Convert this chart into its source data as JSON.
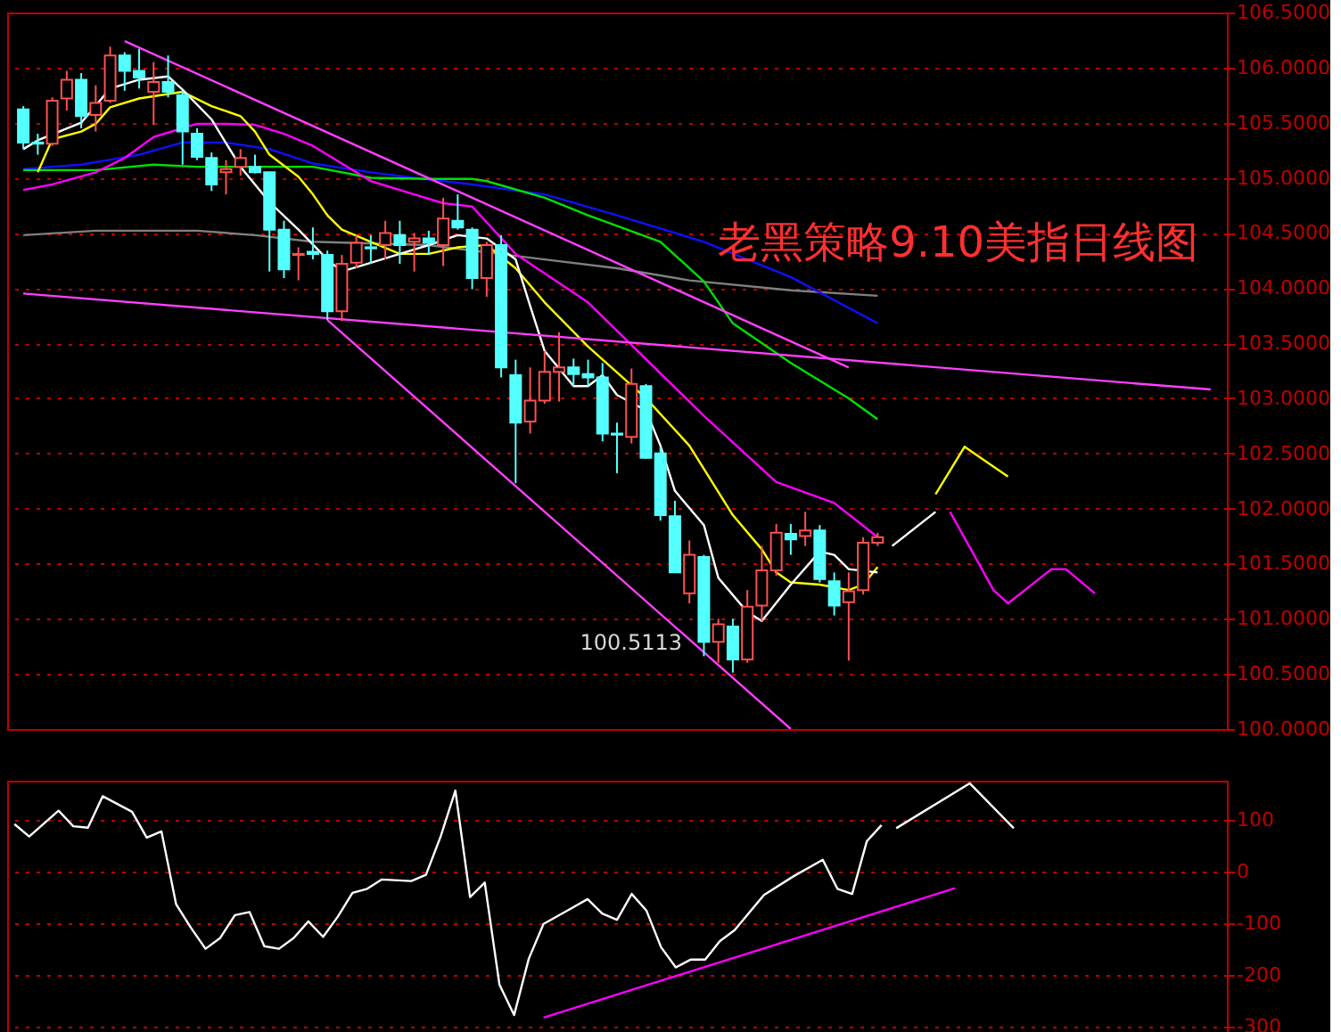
{
  "chart_data": [
    {
      "type": "candlestick",
      "title": "老黑策略9.10美指日线图",
      "categories": [
        null,
        null,
        null,
        null,
        null,
        null,
        null,
        null,
        null,
        null,
        null,
        null,
        null,
        null,
        null,
        null,
        null,
        null,
        null,
        null,
        null,
        null,
        null,
        null,
        null,
        null,
        null,
        null,
        null,
        null,
        null,
        null,
        null,
        null,
        null,
        null,
        null,
        null,
        null,
        null,
        null,
        null,
        null,
        null,
        null,
        null,
        null,
        null,
        null,
        null,
        null,
        null,
        null,
        null,
        null,
        null,
        null,
        null,
        null,
        null,
        null,
        null,
        null,
        null,
        null,
        null,
        null,
        null,
        null,
        null,
        null,
        null,
        null,
        null,
        null,
        null,
        null,
        null,
        null,
        null,
        null,
        null,
        null
      ],
      "ohlc": [
        [
          105.62,
          105.65,
          105.26,
          105.32
        ],
        [
          105.32,
          105.4,
          105.21,
          105.31
        ],
        [
          105.31,
          105.73,
          105.29,
          105.7
        ],
        [
          105.72,
          105.97,
          105.61,
          105.89
        ],
        [
          105.89,
          105.95,
          105.45,
          105.56
        ],
        [
          105.57,
          105.84,
          105.42,
          105.68
        ],
        [
          105.7,
          106.19,
          105.68,
          106.11
        ],
        [
          106.11,
          106.14,
          105.79,
          105.97
        ],
        [
          105.97,
          106.17,
          105.81,
          105.91
        ],
        [
          105.78,
          106.05,
          105.48,
          105.87
        ],
        [
          105.87,
          106.11,
          105.73,
          105.78
        ],
        [
          105.75,
          105.79,
          105.12,
          105.42
        ],
        [
          105.4,
          105.45,
          105.16,
          105.19
        ],
        [
          105.18,
          105.23,
          104.88,
          104.94
        ],
        [
          105.05,
          105.16,
          104.85,
          105.08
        ],
        [
          105.1,
          105.26,
          105.02,
          105.18
        ],
        [
          105.1,
          105.21,
          105.04,
          105.05
        ],
        [
          105.05,
          105.05,
          104.15,
          104.53
        ],
        [
          104.53,
          104.61,
          104.09,
          104.17
        ],
        [
          104.3,
          104.37,
          104.07,
          104.31
        ],
        [
          104.33,
          104.55,
          104.26,
          104.31
        ],
        [
          104.3,
          104.34,
          103.71,
          103.79
        ],
        [
          103.79,
          104.3,
          103.7,
          104.22
        ],
        [
          104.23,
          104.48,
          104.18,
          104.41
        ],
        [
          104.37,
          104.48,
          104.22,
          104.36
        ],
        [
          104.39,
          104.61,
          104.26,
          104.5
        ],
        [
          104.48,
          104.61,
          104.22,
          104.39
        ],
        [
          104.42,
          104.5,
          104.15,
          104.45
        ],
        [
          104.45,
          104.52,
          104.3,
          104.41
        ],
        [
          104.39,
          104.82,
          104.2,
          104.63
        ],
        [
          104.61,
          104.85,
          104.53,
          104.55
        ],
        [
          104.53,
          104.55,
          103.99,
          104.09
        ],
        [
          104.09,
          104.42,
          103.92,
          104.39
        ],
        [
          104.39,
          104.48,
          103.19,
          103.28
        ],
        [
          103.21,
          103.35,
          102.23,
          102.78
        ],
        [
          102.79,
          103.28,
          102.68,
          102.98
        ],
        [
          102.98,
          103.43,
          102.95,
          103.24
        ],
        [
          103.24,
          103.6,
          102.97,
          103.28
        ],
        [
          103.28,
          103.36,
          103.11,
          103.22
        ],
        [
          103.22,
          103.35,
          103.11,
          103.19
        ],
        [
          103.19,
          103.32,
          102.61,
          102.68
        ],
        [
          102.68,
          102.78,
          102.32,
          102.67
        ],
        [
          102.65,
          103.27,
          102.59,
          103.13
        ],
        [
          103.11,
          103.13,
          102.45,
          102.46
        ],
        [
          102.5,
          102.56,
          101.89,
          101.94
        ],
        [
          101.93,
          102.07,
          101.42,
          101.42
        ],
        [
          101.23,
          101.71,
          101.14,
          101.58
        ],
        [
          101.56,
          101.58,
          100.66,
          100.79
        ],
        [
          100.79,
          101.0,
          100.6,
          100.95
        ],
        [
          100.93,
          101.0,
          100.5113,
          100.63
        ],
        [
          100.63,
          101.26,
          100.6,
          101.11
        ],
        [
          101.12,
          101.66,
          100.98,
          101.44
        ],
        [
          101.44,
          101.86,
          101.39,
          101.78
        ],
        [
          101.77,
          101.86,
          101.58,
          101.72
        ],
        [
          101.75,
          101.97,
          101.66,
          101.8
        ],
        [
          101.8,
          101.85,
          101.33,
          101.36
        ],
        [
          101.34,
          101.42,
          101.03,
          101.12
        ],
        [
          101.15,
          101.42,
          100.62,
          101.25
        ],
        [
          101.26,
          101.74,
          101.22,
          101.69
        ],
        [
          101.69,
          101.78,
          101.66,
          101.74
        ],
        null,
        null,
        null,
        null,
        null,
        null,
        null,
        null,
        null,
        null,
        null,
        null,
        null,
        null,
        null,
        null,
        null,
        null,
        null,
        null,
        null,
        null,
        null
      ],
      "series": [
        {
          "type": "line",
          "color": "#808080",
          "values": [
            104.48,
            null,
            null,
            null,
            null,
            104.52,
            null,
            null,
            null,
            null,
            null,
            null,
            104.52,
            null,
            null,
            null,
            104.48,
            null,
            null,
            null,
            104.42,
            null,
            null,
            null,
            null,
            null,
            null,
            null,
            104.39,
            null,
            null,
            104.34,
            null,
            null,
            null,
            null,
            104.26,
            null,
            null,
            null,
            null,
            104.18,
            null,
            null,
            null,
            null,
            104.07,
            null,
            null,
            null,
            null,
            null,
            null,
            103.98,
            null,
            null,
            null,
            null,
            null,
            103.93,
            null,
            null,
            null,
            null,
            null,
            null,
            null,
            null,
            null,
            null,
            null,
            null,
            null,
            null,
            null,
            null,
            null,
            null,
            null,
            null,
            null,
            null,
            null
          ]
        },
        {
          "type": "line",
          "color": "#1010ff",
          "values": [
            105.08,
            null,
            null,
            null,
            105.12,
            null,
            null,
            null,
            105.21,
            null,
            null,
            105.32,
            null,
            null,
            105.32,
            null,
            null,
            105.26,
            null,
            null,
            105.13,
            null,
            null,
            null,
            105.05,
            null,
            null,
            105.0,
            null,
            null,
            null,
            104.94,
            null,
            null,
            null,
            null,
            104.85,
            null,
            null,
            null,
            null,
            104.66,
            null,
            null,
            null,
            null,
            null,
            104.42,
            null,
            null,
            null,
            null,
            null,
            104.1,
            null,
            null,
            null,
            null,
            null,
            103.68,
            null,
            null,
            null,
            null,
            null,
            null,
            null,
            null,
            null,
            null,
            null,
            null,
            null,
            null,
            null,
            null,
            null,
            null,
            null,
            null,
            null,
            null,
            null
          ]
        },
        {
          "type": "line",
          "color": "#00e000",
          "values": [
            105.07,
            null,
            null,
            null,
            null,
            105.07,
            null,
            null,
            null,
            105.12,
            null,
            null,
            105.1,
            null,
            null,
            null,
            105.1,
            null,
            null,
            null,
            105.1,
            null,
            null,
            null,
            105.0,
            null,
            null,
            null,
            104.99,
            null,
            null,
            104.99,
            104.97,
            null,
            null,
            null,
            104.82,
            null,
            null,
            104.66,
            null,
            null,
            null,
            null,
            104.42,
            null,
            null,
            104.06,
            null,
            103.68,
            null,
            null,
            null,
            103.32,
            null,
            null,
            null,
            103.0,
            null,
            102.81,
            null,
            null,
            null,
            null,
            null,
            null,
            null,
            null,
            null,
            null,
            null,
            null,
            null,
            null,
            null,
            null,
            null,
            null,
            null,
            null,
            null,
            null,
            null
          ]
        },
        {
          "type": "line",
          "color": "#ff00ff",
          "values": [
            104.89,
            null,
            104.94,
            null,
            null,
            105.05,
            null,
            105.18,
            null,
            105.37,
            null,
            null,
            105.49,
            null,
            105.49,
            null,
            105.48,
            null,
            105.4,
            null,
            105.29,
            null,
            105.13,
            null,
            104.97,
            null,
            null,
            104.85,
            null,
            104.77,
            null,
            104.74,
            null,
            null,
            104.31,
            null,
            null,
            null,
            null,
            103.87,
            null,
            null,
            null,
            null,
            null,
            null,
            null,
            102.84,
            null,
            null,
            null,
            null,
            102.24,
            null,
            null,
            null,
            102.05,
            null,
            null,
            101.74,
            null,
            null,
            null,
            null,
            null,
            null,
            null,
            null,
            null,
            null,
            null,
            null,
            null,
            null,
            null,
            null,
            null,
            null,
            null,
            null,
            null,
            null,
            null
          ]
        },
        {
          "type": "line",
          "color": "#ffff00",
          "values": [
            null,
            105.05,
            105.35,
            null,
            105.42,
            105.49,
            105.64,
            null,
            105.72,
            null,
            105.76,
            105.78,
            null,
            105.65,
            null,
            105.56,
            105.42,
            105.21,
            null,
            105.01,
            104.85,
            104.66,
            104.53,
            null,
            104.42,
            null,
            104.31,
            null,
            104.31,
            null,
            104.37,
            null,
            104.39,
            null,
            104.18,
            null,
            103.87,
            null,
            null,
            103.47,
            null,
            null,
            null,
            103.0,
            null,
            null,
            102.57,
            null,
            null,
            101.94,
            null,
            101.63,
            101.42,
            101.33,
            null,
            101.31,
            null,
            101.26,
            101.31,
            101.47,
            null,
            null,
            null,
            null,
            null,
            null,
            null,
            null,
            null,
            null,
            null,
            null,
            null,
            null,
            null,
            null,
            null,
            null,
            null,
            null,
            null,
            null,
            null
          ]
        },
        {
          "type": "line",
          "color": "#ffffff",
          "values": [
            105.26,
            105.34,
            null,
            null,
            105.5,
            null,
            105.81,
            null,
            105.89,
            null,
            105.92,
            105.8,
            null,
            105.53,
            null,
            105.1,
            null,
            104.78,
            null,
            104.53,
            null,
            104.26,
            104.15,
            null,
            104.23,
            null,
            104.31,
            null,
            104.39,
            null,
            104.48,
            null,
            104.45,
            null,
            104.26,
            103.84,
            103.43,
            null,
            103.11,
            103.11,
            103.21,
            103.03,
            null,
            102.89,
            102.57,
            102.16,
            null,
            101.85,
            101.37,
            null,
            101.06,
            100.98,
            null,
            101.31,
            null,
            101.61,
            101.58,
            101.45,
            null,
            101.42,
            null,
            null,
            null,
            null,
            null,
            null,
            null,
            null,
            null,
            null,
            null,
            null,
            null,
            null,
            null,
            null,
            null,
            null,
            null,
            null,
            null,
            null,
            null
          ]
        },
        {
          "type": "line",
          "color": "#ff40ff",
          "values": [
            null,
            null,
            null,
            null,
            null,
            null,
            null,
            106.24,
            null,
            null,
            null,
            null,
            null,
            null,
            null,
            null,
            null,
            null,
            null,
            null,
            null,
            null,
            null,
            null,
            null,
            null,
            null,
            null,
            null,
            null,
            null,
            null,
            null,
            null,
            null,
            null,
            null,
            null,
            null,
            null,
            null,
            null,
            null,
            null,
            null,
            null,
            null,
            null,
            null,
            null,
            null,
            null,
            null,
            null,
            null,
            null,
            null,
            103.28,
            null,
            null,
            null,
            null,
            null,
            null,
            null,
            null,
            null,
            null,
            null,
            null,
            null,
            null,
            null,
            null,
            null,
            null,
            null,
            null,
            null,
            null,
            null,
            null,
            null
          ]
        },
        {
          "type": "line",
          "color": "#ff40ff",
          "values": [
            null,
            null,
            null,
            null,
            null,
            null,
            null,
            null,
            null,
            null,
            null,
            null,
            null,
            null,
            null,
            null,
            null,
            null,
            null,
            null,
            null,
            103.71,
            null,
            null,
            null,
            null,
            null,
            null,
            null,
            null,
            null,
            null,
            null,
            null,
            null,
            null,
            null,
            null,
            null,
            null,
            null,
            null,
            null,
            null,
            null,
            null,
            null,
            null,
            null,
            null,
            null,
            null,
            null,
            100.0,
            null,
            null,
            null,
            null,
            null,
            null,
            null,
            null,
            null,
            null,
            null,
            null,
            null,
            null,
            null,
            null,
            null,
            null,
            null,
            null,
            null,
            null,
            null,
            null,
            null,
            null,
            null,
            null,
            null
          ]
        },
        {
          "type": "line",
          "color": "#ff40ff",
          "values": [
            103.95,
            null,
            null,
            null,
            null,
            null,
            null,
            null,
            null,
            null,
            null,
            null,
            null,
            null,
            null,
            null,
            null,
            null,
            null,
            null,
            null,
            null,
            null,
            null,
            null,
            null,
            null,
            null,
            null,
            null,
            null,
            null,
            null,
            null,
            null,
            null,
            null,
            null,
            null,
            null,
            null,
            null,
            null,
            null,
            null,
            null,
            null,
            null,
            null,
            null,
            null,
            null,
            null,
            null,
            null,
            null,
            null,
            null,
            null,
            null,
            null,
            null,
            null,
            null,
            null,
            null,
            null,
            null,
            null,
            null,
            null,
            null,
            null,
            null,
            null,
            null,
            null,
            null,
            null,
            null,
            null,
            null,
            103.08
          ]
        },
        {
          "type": "line",
          "color": "#ffffff",
          "values": [
            null,
            null,
            null,
            null,
            null,
            null,
            null,
            null,
            null,
            null,
            null,
            null,
            null,
            null,
            null,
            null,
            null,
            null,
            null,
            null,
            null,
            null,
            null,
            null,
            null,
            null,
            null,
            null,
            null,
            null,
            null,
            null,
            null,
            null,
            null,
            null,
            null,
            null,
            null,
            null,
            null,
            null,
            null,
            null,
            null,
            null,
            null,
            null,
            null,
            null,
            null,
            null,
            null,
            null,
            null,
            null,
            null,
            null,
            null,
            null,
            101.66,
            null,
            null,
            101.97,
            null,
            null,
            null,
            null,
            null,
            null,
            null,
            null,
            null,
            null,
            null,
            null,
            null,
            null,
            null,
            null,
            null,
            null,
            null
          ]
        },
        {
          "type": "line",
          "color": "#ffff00",
          "values": [
            null,
            null,
            null,
            null,
            null,
            null,
            null,
            null,
            null,
            null,
            null,
            null,
            null,
            null,
            null,
            null,
            null,
            null,
            null,
            null,
            null,
            null,
            null,
            null,
            null,
            null,
            null,
            null,
            null,
            null,
            null,
            null,
            null,
            null,
            null,
            null,
            null,
            null,
            null,
            null,
            null,
            null,
            null,
            null,
            null,
            null,
            null,
            null,
            null,
            null,
            null,
            null,
            null,
            null,
            null,
            null,
            null,
            null,
            null,
            null,
            null,
            null,
            null,
            102.13,
            null,
            102.56,
            null,
            null,
            102.29,
            null,
            null,
            null,
            null,
            null,
            null,
            null,
            null,
            null,
            null,
            null,
            null,
            null,
            null
          ]
        },
        {
          "type": "line",
          "color": "#ff00ff",
          "values": [
            null,
            null,
            null,
            null,
            null,
            null,
            null,
            null,
            null,
            null,
            null,
            null,
            null,
            null,
            null,
            null,
            null,
            null,
            null,
            null,
            null,
            null,
            null,
            null,
            null,
            null,
            null,
            null,
            null,
            null,
            null,
            null,
            null,
            null,
            null,
            null,
            null,
            null,
            null,
            null,
            null,
            null,
            null,
            null,
            null,
            null,
            null,
            null,
            null,
            null,
            null,
            null,
            null,
            null,
            null,
            null,
            null,
            null,
            null,
            null,
            null,
            null,
            null,
            null,
            101.97,
            null,
            null,
            101.26,
            101.14,
            null,
            null,
            101.45,
            101.45,
            null,
            101.23,
            null,
            null,
            null,
            null,
            null,
            null,
            null,
            null
          ]
        }
      ],
      "ylim": [
        100,
        106.5
      ],
      "yticks": [
        {
          "value": 100,
          "label": "100.0000"
        },
        {
          "value": 100.5,
          "label": "100.5000"
        },
        {
          "value": 101,
          "label": "101.0000"
        },
        {
          "value": 101.5,
          "label": "101.5000"
        },
        {
          "value": 102,
          "label": "102.0000"
        },
        {
          "value": 102.5,
          "label": "102.5000"
        },
        {
          "value": 103,
          "label": "103.0000"
        },
        {
          "value": 103.5,
          "label": "103.5000"
        },
        {
          "value": 104,
          "label": "104.0000"
        },
        {
          "value": 104.5,
          "label": "104.5000"
        },
        {
          "value": 105,
          "label": "105.0000"
        },
        {
          "value": 105.5,
          "label": "105.5000"
        },
        {
          "value": 106,
          "label": "106.0000"
        },
        {
          "value": 106.5,
          "label": "106.5000"
        }
      ],
      "grid": "y",
      "tick_labels": "y",
      "annotations": [
        "100.5113"
      ]
    },
    {
      "type": "line",
      "categories": [
        null,
        null,
        null,
        null,
        null,
        null,
        null,
        null,
        null,
        null,
        null,
        null,
        null,
        null,
        null,
        null,
        null,
        null,
        null,
        null,
        null,
        null,
        null,
        null,
        null,
        null,
        null,
        null,
        null,
        null,
        null,
        null,
        null,
        null,
        null,
        null,
        null,
        null,
        null,
        null,
        null,
        null,
        null,
        null,
        null,
        null,
        null,
        null,
        null,
        null,
        null,
        null,
        null,
        null,
        null,
        null,
        null,
        null,
        null,
        null,
        null,
        null,
        null,
        null,
        null,
        null,
        null,
        null,
        null,
        null,
        null,
        null,
        null,
        null,
        null,
        null,
        null,
        null,
        null,
        null,
        null,
        null,
        null
      ],
      "series": [
        {
          "color": "#ffffff",
          "values": [
            91,
            67,
            null,
            117,
            87,
            84,
            145,
            null,
            115,
            65,
            77,
            -64,
            -109,
            -150,
            -129,
            -85,
            -79,
            -145,
            -150,
            -129,
            -97,
            -127,
            -88,
            -42,
            -34,
            -16,
            null,
            -19,
            -7,
            67,
            156,
            -50,
            -22,
            -219,
            -278,
            -169,
            -102,
            null,
            -70,
            -54,
            -82,
            -94,
            -44,
            -76,
            -147,
            -186,
            -171,
            -171,
            -135,
            -114,
            null,
            -46,
            null,
            -10,
            null,
            22,
            -34,
            -44,
            58,
            89,
            null,
            null,
            null,
            null,
            null,
            null,
            null,
            null,
            null,
            null,
            null,
            null,
            null,
            null,
            null,
            null,
            null,
            null,
            null,
            null,
            null,
            null,
            null
          ]
        },
        {
          "color": "#ffffff",
          "values": [
            null,
            null,
            null,
            null,
            null,
            null,
            null,
            null,
            null,
            null,
            null,
            null,
            null,
            null,
            null,
            null,
            null,
            null,
            null,
            null,
            null,
            null,
            null,
            null,
            null,
            null,
            null,
            null,
            null,
            null,
            null,
            null,
            null,
            null,
            null,
            null,
            null,
            null,
            null,
            null,
            null,
            null,
            null,
            null,
            null,
            null,
            null,
            null,
            null,
            null,
            null,
            null,
            null,
            null,
            null,
            null,
            null,
            null,
            null,
            null,
            83,
            null,
            null,
            null,
            null,
            170,
            null,
            null,
            83,
            null,
            null,
            null,
            null,
            null,
            null,
            null,
            null,
            null,
            null,
            null,
            null,
            null,
            null
          ]
        },
        {
          "color": "#ff00ff",
          "values": [
            null,
            null,
            null,
            null,
            null,
            null,
            null,
            null,
            null,
            null,
            null,
            null,
            null,
            null,
            null,
            null,
            null,
            null,
            null,
            null,
            null,
            null,
            null,
            null,
            null,
            null,
            null,
            null,
            null,
            null,
            null,
            null,
            null,
            null,
            null,
            null,
            -283,
            null,
            null,
            null,
            null,
            null,
            null,
            null,
            null,
            null,
            null,
            null,
            null,
            null,
            null,
            null,
            null,
            null,
            null,
            null,
            null,
            null,
            null,
            null,
            null,
            null,
            null,
            null,
            -33,
            null,
            null,
            null,
            null,
            null,
            null,
            null,
            null,
            null,
            null,
            null,
            null,
            null,
            null,
            null,
            null,
            null,
            null
          ]
        }
      ],
      "ylim": [
        -335,
        175
      ],
      "yticks": [
        -300,
        -200,
        -100,
        0,
        100
      ],
      "grid": "y",
      "tick_labels": "y"
    }
  ]
}
